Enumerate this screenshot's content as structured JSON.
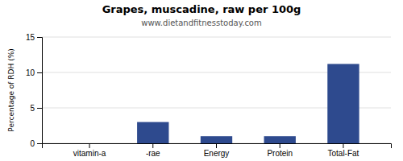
{
  "chart_data": {
    "type": "bar",
    "title": "Grapes, muscadine, raw per 100g",
    "subtitle": "www.dietandfitnesstoday.com",
    "categories": [
      "vitamin-a",
      "-rae",
      "Energy",
      "Protein",
      "Total-Fat"
    ],
    "values": [
      0,
      3.0,
      1.0,
      1.0,
      11.2
    ],
    "color": "#2e4a8e",
    "ylabel": "Percentage of RDH (%)",
    "ylim": [
      0,
      15
    ],
    "yticks": [
      0,
      5,
      10,
      15
    ],
    "grid": true
  }
}
